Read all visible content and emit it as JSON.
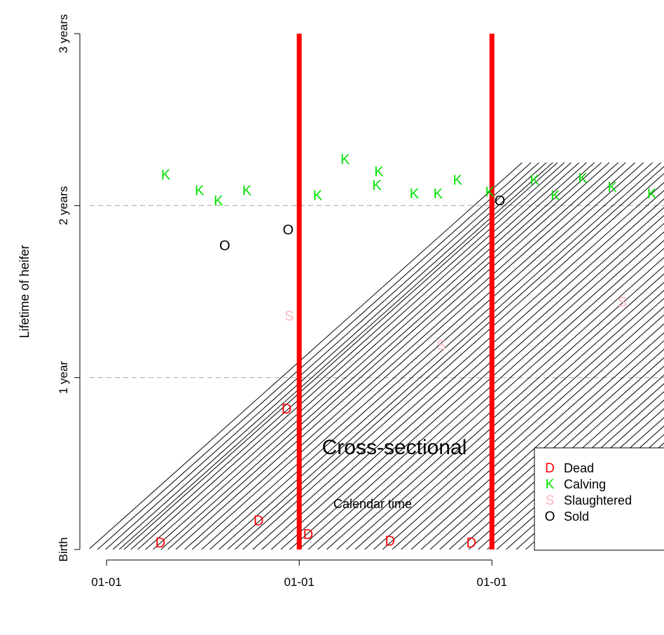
{
  "chart_data": {
    "type": "scatter",
    "xlabel": "Calendar time",
    "ylabel": "Lifetime of heifer",
    "x_ticks": [
      {
        "value": 0,
        "label": "01-01"
      },
      {
        "value": 365,
        "label": "01-01"
      },
      {
        "value": 730,
        "label": "01-01"
      }
    ],
    "y_ticks": [
      {
        "value": 0,
        "label": "Birth"
      },
      {
        "value": 1,
        "label": "1 year"
      },
      {
        "value": 2,
        "label": "2 years"
      },
      {
        "value": 3,
        "label": "3 years"
      }
    ],
    "xlim": [
      -32,
      1056
    ],
    "ylim": [
      0,
      3
    ],
    "reference_lines": [
      {
        "orientation": "horizontal",
        "value": 1,
        "style": "dashed",
        "color": "#bdbdbd"
      },
      {
        "orientation": "horizontal",
        "value": 2,
        "style": "dashed",
        "color": "#bdbdbd"
      },
      {
        "orientation": "vertical",
        "value": 365,
        "color": "#ff0000"
      },
      {
        "orientation": "vertical",
        "value": 730,
        "color": "#ff0000"
      }
    ],
    "annotation": "Cross-sectional",
    "lifelines_birth_dates": [
      -34,
      -17,
      -2,
      12,
      24,
      33,
      46,
      59,
      74,
      88,
      103,
      116,
      131,
      148,
      162,
      180,
      196,
      213,
      229,
      243,
      258,
      277,
      294,
      312,
      330,
      347,
      364,
      382,
      400,
      417,
      436,
      454,
      471,
      489,
      506,
      523,
      541,
      558,
      577,
      596,
      613,
      631,
      649,
      667,
      686,
      704,
      721,
      739,
      757,
      776,
      794,
      812,
      830,
      848,
      866,
      884,
      902,
      920,
      939,
      958,
      976,
      995,
      1014,
      1033
    ],
    "events": [
      {
        "type": "D",
        "x": 102,
        "y": 0.04
      },
      {
        "type": "D",
        "x": 288,
        "y": 0.17
      },
      {
        "type": "D",
        "x": 341,
        "y": 0.82
      },
      {
        "type": "D",
        "x": 382,
        "y": 0.09
      },
      {
        "type": "D",
        "x": 537,
        "y": 0.05
      },
      {
        "type": "D",
        "x": 691,
        "y": 0.04
      },
      {
        "type": "K",
        "x": 112,
        "y": 2.18
      },
      {
        "type": "K",
        "x": 176,
        "y": 2.09
      },
      {
        "type": "K",
        "x": 212,
        "y": 2.03
      },
      {
        "type": "K",
        "x": 266,
        "y": 2.09
      },
      {
        "type": "K",
        "x": 400,
        "y": 2.06
      },
      {
        "type": "K",
        "x": 452,
        "y": 2.27
      },
      {
        "type": "K",
        "x": 512,
        "y": 2.12
      },
      {
        "type": "K",
        "x": 516,
        "y": 2.2
      },
      {
        "type": "K",
        "x": 583,
        "y": 2.07
      },
      {
        "type": "K",
        "x": 628,
        "y": 2.07
      },
      {
        "type": "K",
        "x": 665,
        "y": 2.15
      },
      {
        "type": "K",
        "x": 726,
        "y": 2.08
      },
      {
        "type": "K",
        "x": 811,
        "y": 2.15
      },
      {
        "type": "K",
        "x": 850,
        "y": 2.06
      },
      {
        "type": "K",
        "x": 902,
        "y": 2.16
      },
      {
        "type": "K",
        "x": 958,
        "y": 2.11
      },
      {
        "type": "K",
        "x": 1033,
        "y": 2.07
      },
      {
        "type": "S",
        "x": 346,
        "y": 1.36
      },
      {
        "type": "S",
        "x": 634,
        "y": 1.19
      },
      {
        "type": "S",
        "x": 977,
        "y": 1.44
      },
      {
        "type": "O",
        "x": 224,
        "y": 1.77
      },
      {
        "type": "O",
        "x": 344,
        "y": 1.86
      },
      {
        "type": "O",
        "x": 745,
        "y": 2.03
      }
    ],
    "legend": {
      "position": "bottom-right",
      "entries": [
        {
          "symbol": "D",
          "label": "Dead",
          "color": "#ff0000"
        },
        {
          "symbol": "K",
          "label": "Calving",
          "color": "#00e000"
        },
        {
          "symbol": "S",
          "label": "Slaughtered",
          "color": "#ffb6c1"
        },
        {
          "symbol": "O",
          "label": "Sold",
          "color": "#000000"
        }
      ]
    },
    "colors": {
      "D": "#ff0000",
      "K": "#00e000",
      "S": "#ffb6c1",
      "O": "#000000",
      "lifeline": "#000000",
      "cross_section": "#ff0000",
      "gridline": "#bdbdbd"
    }
  }
}
